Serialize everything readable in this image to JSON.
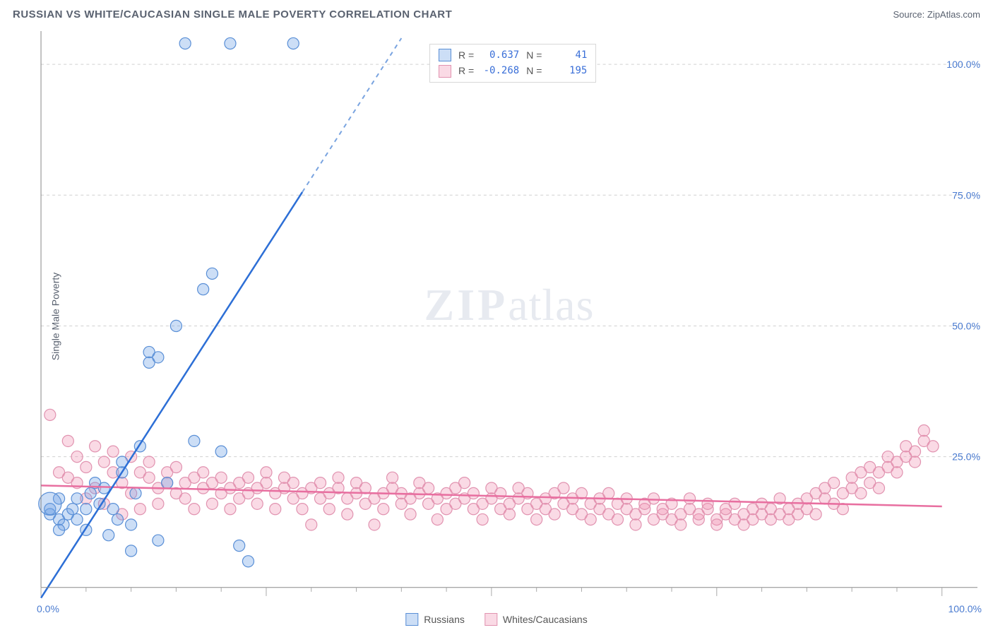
{
  "title": "RUSSIAN VS WHITE/CAUCASIAN SINGLE MALE POVERTY CORRELATION CHART",
  "source_label": "Source: ",
  "source_name": "ZipAtlas.com",
  "ylabel": "Single Male Poverty",
  "watermark_a": "ZIP",
  "watermark_b": "atlas",
  "chart": {
    "type": "scatter",
    "xlim": [
      0,
      100
    ],
    "ylim": [
      0,
      105
    ],
    "y_ticks": [
      25,
      50,
      75,
      100
    ],
    "y_tick_labels": [
      "25.0%",
      "50.0%",
      "75.0%",
      "100.0%"
    ],
    "x_minor_count": 20,
    "x_corner_min": "0.0%",
    "x_corner_max": "100.0%",
    "grid_color": "#d0d0d0",
    "background_color": "#ffffff",
    "series": [
      {
        "name": "Russians",
        "label": "Russians",
        "color_fill": "rgba(110,160,230,0.35)",
        "color_stroke": "#5a8fd6",
        "marker_radius": 8,
        "R": "0.637",
        "N": "41",
        "trend": {
          "x1": 0,
          "y1": -2,
          "x2": 40,
          "y2": 105,
          "dash_after_x": 29
        },
        "points": [
          [
            1,
            14
          ],
          [
            1,
            15
          ],
          [
            2,
            13
          ],
          [
            2,
            17
          ],
          [
            2.5,
            12
          ],
          [
            2,
            11
          ],
          [
            1,
            16,
            16
          ],
          [
            3,
            14
          ],
          [
            3.5,
            15
          ],
          [
            4,
            13
          ],
          [
            4,
            17
          ],
          [
            5,
            15
          ],
          [
            5,
            11
          ],
          [
            5.5,
            18
          ],
          [
            6,
            20
          ],
          [
            6.5,
            16
          ],
          [
            7,
            19
          ],
          [
            7.5,
            10
          ],
          [
            8,
            15
          ],
          [
            8.5,
            13
          ],
          [
            9,
            22
          ],
          [
            9,
            24
          ],
          [
            10,
            12
          ],
          [
            10.5,
            18
          ],
          [
            11,
            27
          ],
          [
            12,
            43
          ],
          [
            12,
            45
          ],
          [
            13,
            44
          ],
          [
            14,
            20
          ],
          [
            15,
            50
          ],
          [
            16,
            104
          ],
          [
            17,
            28
          ],
          [
            18,
            57
          ],
          [
            19,
            60
          ],
          [
            20,
            26
          ],
          [
            21,
            104
          ],
          [
            22,
            8
          ],
          [
            23,
            5
          ],
          [
            28,
            104
          ],
          [
            10,
            7
          ],
          [
            13,
            9
          ]
        ]
      },
      {
        "name": "Whites/Caucasians",
        "label": "Whites/Caucasians",
        "color_fill": "rgba(240,150,180,0.35)",
        "color_stroke": "#e193b0",
        "marker_radius": 8,
        "R": "-0.268",
        "N": "195",
        "trend": {
          "x1": 0,
          "y1": 19.5,
          "x2": 100,
          "y2": 15.5
        },
        "points": [
          [
            1,
            33
          ],
          [
            2,
            22
          ],
          [
            3,
            28
          ],
          [
            3,
            21
          ],
          [
            4,
            25
          ],
          [
            4,
            20
          ],
          [
            5,
            23
          ],
          [
            5,
            17
          ],
          [
            6,
            27
          ],
          [
            6,
            19
          ],
          [
            7,
            24
          ],
          [
            7,
            16
          ],
          [
            8,
            22
          ],
          [
            8,
            26
          ],
          [
            9,
            20
          ],
          [
            9,
            14
          ],
          [
            10,
            25
          ],
          [
            10,
            18
          ],
          [
            11,
            22
          ],
          [
            11,
            15
          ],
          [
            12,
            21
          ],
          [
            12,
            24
          ],
          [
            13,
            19
          ],
          [
            13,
            16
          ],
          [
            14,
            22
          ],
          [
            14,
            20
          ],
          [
            15,
            18
          ],
          [
            15,
            23
          ],
          [
            16,
            20
          ],
          [
            16,
            17
          ],
          [
            17,
            21
          ],
          [
            17,
            15
          ],
          [
            18,
            19
          ],
          [
            18,
            22
          ],
          [
            19,
            20
          ],
          [
            19,
            16
          ],
          [
            20,
            18
          ],
          [
            20,
            21
          ],
          [
            21,
            19
          ],
          [
            21,
            15
          ],
          [
            22,
            20
          ],
          [
            22,
            17
          ],
          [
            23,
            18
          ],
          [
            23,
            21
          ],
          [
            24,
            19
          ],
          [
            24,
            16
          ],
          [
            25,
            20
          ],
          [
            25,
            22
          ],
          [
            26,
            18
          ],
          [
            26,
            15
          ],
          [
            27,
            19
          ],
          [
            27,
            21
          ],
          [
            28,
            17
          ],
          [
            28,
            20
          ],
          [
            29,
            18
          ],
          [
            29,
            15
          ],
          [
            30,
            19
          ],
          [
            30,
            12
          ],
          [
            31,
            17
          ],
          [
            31,
            20
          ],
          [
            32,
            18
          ],
          [
            32,
            15
          ],
          [
            33,
            19
          ],
          [
            33,
            21
          ],
          [
            34,
            17
          ],
          [
            34,
            14
          ],
          [
            35,
            18
          ],
          [
            35,
            20
          ],
          [
            36,
            16
          ],
          [
            36,
            19
          ],
          [
            37,
            17
          ],
          [
            37,
            12
          ],
          [
            38,
            18
          ],
          [
            38,
            15
          ],
          [
            39,
            19
          ],
          [
            39,
            21
          ],
          [
            40,
            16
          ],
          [
            40,
            18
          ],
          [
            41,
            17
          ],
          [
            41,
            14
          ],
          [
            42,
            18
          ],
          [
            42,
            20
          ],
          [
            43,
            16
          ],
          [
            43,
            19
          ],
          [
            44,
            17
          ],
          [
            44,
            13
          ],
          [
            45,
            18
          ],
          [
            45,
            15
          ],
          [
            46,
            16
          ],
          [
            46,
            19
          ],
          [
            47,
            17
          ],
          [
            47,
            20
          ],
          [
            48,
            15
          ],
          [
            48,
            18
          ],
          [
            49,
            16
          ],
          [
            49,
            13
          ],
          [
            50,
            17
          ],
          [
            50,
            19
          ],
          [
            51,
            15
          ],
          [
            51,
            18
          ],
          [
            52,
            16
          ],
          [
            52,
            14
          ],
          [
            53,
            17
          ],
          [
            53,
            19
          ],
          [
            54,
            15
          ],
          [
            54,
            18
          ],
          [
            55,
            16
          ],
          [
            55,
            13
          ],
          [
            56,
            17
          ],
          [
            56,
            15
          ],
          [
            57,
            18
          ],
          [
            57,
            14
          ],
          [
            58,
            16
          ],
          [
            58,
            19
          ],
          [
            59,
            15
          ],
          [
            59,
            17
          ],
          [
            60,
            14
          ],
          [
            60,
            18
          ],
          [
            61,
            16
          ],
          [
            61,
            13
          ],
          [
            62,
            15
          ],
          [
            62,
            17
          ],
          [
            63,
            14
          ],
          [
            63,
            18
          ],
          [
            64,
            16
          ],
          [
            64,
            13
          ],
          [
            65,
            15
          ],
          [
            65,
            17
          ],
          [
            66,
            14
          ],
          [
            66,
            12
          ],
          [
            67,
            15
          ],
          [
            67,
            16
          ],
          [
            68,
            13
          ],
          [
            68,
            17
          ],
          [
            69,
            14
          ],
          [
            69,
            15
          ],
          [
            70,
            13
          ],
          [
            70,
            16
          ],
          [
            71,
            14
          ],
          [
            71,
            12
          ],
          [
            72,
            15
          ],
          [
            72,
            17
          ],
          [
            73,
            13
          ],
          [
            73,
            14
          ],
          [
            74,
            15
          ],
          [
            74,
            16
          ],
          [
            75,
            13
          ],
          [
            75,
            12
          ],
          [
            76,
            14
          ],
          [
            76,
            15
          ],
          [
            77,
            13
          ],
          [
            77,
            16
          ],
          [
            78,
            14
          ],
          [
            78,
            12
          ],
          [
            79,
            15
          ],
          [
            79,
            13
          ],
          [
            80,
            14
          ],
          [
            80,
            16
          ],
          [
            81,
            15
          ],
          [
            81,
            13
          ],
          [
            82,
            14
          ],
          [
            82,
            17
          ],
          [
            83,
            15
          ],
          [
            83,
            13
          ],
          [
            84,
            16
          ],
          [
            84,
            14
          ],
          [
            85,
            17
          ],
          [
            85,
            15
          ],
          [
            86,
            18
          ],
          [
            86,
            14
          ],
          [
            87,
            17
          ],
          [
            87,
            19
          ],
          [
            88,
            16
          ],
          [
            88,
            20
          ],
          [
            89,
            18
          ],
          [
            89,
            15
          ],
          [
            90,
            19
          ],
          [
            90,
            21
          ],
          [
            91,
            18
          ],
          [
            91,
            22
          ],
          [
            92,
            20
          ],
          [
            92,
            23
          ],
          [
            93,
            22
          ],
          [
            93,
            19
          ],
          [
            94,
            23
          ],
          [
            94,
            25
          ],
          [
            95,
            24
          ],
          [
            95,
            22
          ],
          [
            96,
            25
          ],
          [
            96,
            27
          ],
          [
            97,
            26
          ],
          [
            97,
            24
          ],
          [
            98,
            28
          ],
          [
            98,
            30
          ],
          [
            99,
            27
          ]
        ]
      }
    ]
  },
  "legend_top": {
    "r_label": "R =",
    "n_label": "N ="
  }
}
